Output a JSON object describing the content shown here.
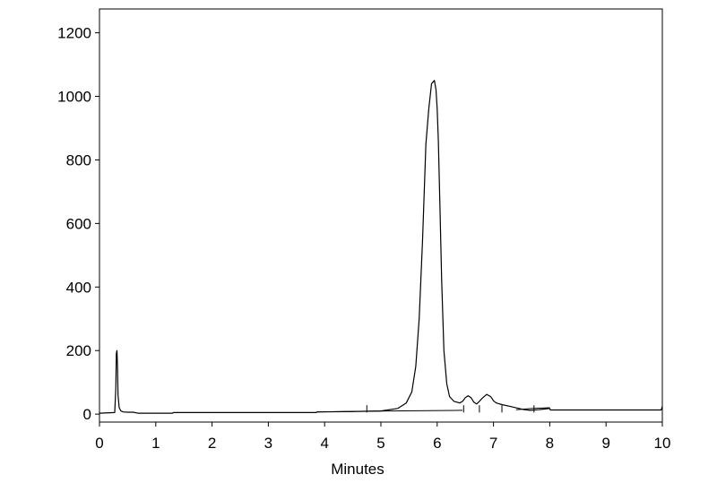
{
  "chart_data": {
    "type": "line",
    "title": "",
    "xlabel": "Minutes",
    "ylabel": "",
    "xlim": [
      0,
      10
    ],
    "ylim": [
      -25,
      1275
    ],
    "x_ticks": [
      0,
      1,
      2,
      3,
      4,
      5,
      6,
      7,
      8,
      9,
      10
    ],
    "y_ticks": [
      0,
      200,
      400,
      600,
      800,
      1000,
      1200
    ],
    "grid": false,
    "legend": "none",
    "line_color": "#000000",
    "series": [
      {
        "x": [
          0.0,
          0.27,
          0.29,
          0.3,
          0.31,
          0.32,
          0.33,
          0.35,
          0.38,
          0.42,
          0.5,
          0.6,
          0.68,
          1.0,
          1.3,
          1.31,
          2.0,
          3.0,
          3.85,
          3.87,
          4.5,
          5.0,
          5.3,
          5.45,
          5.55,
          5.62,
          5.68,
          5.74,
          5.8,
          5.85,
          5.9,
          5.95,
          5.98,
          6.0,
          6.02,
          6.05,
          6.08,
          6.12,
          6.17,
          6.22,
          6.3,
          6.4,
          6.45,
          6.5,
          6.55,
          6.6,
          6.65,
          6.7,
          6.75,
          6.8,
          6.88,
          6.95,
          7.0,
          7.05,
          7.15,
          7.3,
          7.45,
          7.55,
          7.65,
          7.8,
          7.9,
          8.0,
          8.01,
          9.0,
          9.98,
          10.0
        ],
        "y": [
          3,
          5,
          80,
          190,
          200,
          150,
          60,
          20,
          10,
          7,
          6,
          6,
          3,
          3,
          3,
          5,
          5,
          5,
          5,
          7,
          8,
          10,
          18,
          35,
          70,
          150,
          300,
          550,
          850,
          960,
          1040,
          1050,
          1020,
          960,
          860,
          650,
          420,
          200,
          95,
          55,
          40,
          35,
          40,
          52,
          58,
          52,
          38,
          32,
          40,
          50,
          62,
          55,
          42,
          35,
          30,
          24,
          18,
          14,
          12,
          14,
          16,
          18,
          13,
          13,
          13,
          25
        ]
      }
    ],
    "baselines": [
      {
        "x": [
          3.85,
          4.7,
          6.45
        ],
        "y": [
          7,
          9,
          12
        ]
      },
      {
        "x": [
          7.4,
          7.7,
          8.0
        ],
        "y": [
          14,
          18,
          20
        ]
      }
    ],
    "integration_marks": [
      4.75,
      6.47,
      6.75,
      7.15,
      7.72
    ]
  }
}
